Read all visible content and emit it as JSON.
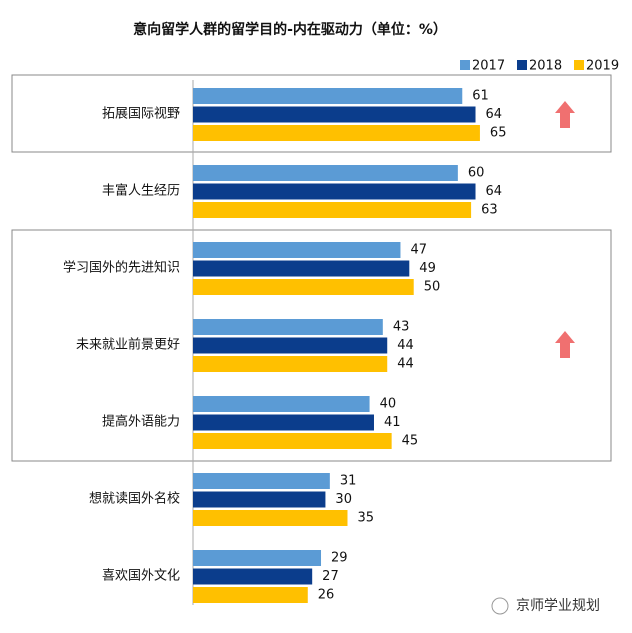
{
  "chart_data": {
    "type": "bar",
    "orientation": "horizontal",
    "title": "意向留学人群的留学目的-内在驱动力（单位：%）",
    "categories": [
      "拓展国际视野",
      "丰富人生经历",
      "学习国外的先进知识",
      "未来就业前景更好",
      "提高外语能力",
      "想就读国外名校",
      "喜欢国外文化"
    ],
    "series": [
      {
        "name": "2017",
        "color": "#5b9bd5",
        "values": [
          61,
          60,
          47,
          43,
          40,
          31,
          29
        ]
      },
      {
        "name": "2018",
        "color": "#0b3d8c",
        "values": [
          64,
          64,
          49,
          44,
          41,
          30,
          27
        ]
      },
      {
        "name": "2019",
        "color": "#ffc000",
        "values": [
          65,
          63,
          50,
          44,
          45,
          35,
          26
        ]
      }
    ],
    "xlim": [
      0,
      70
    ],
    "legend": "top-right"
  },
  "watermark": "京师学业规划"
}
